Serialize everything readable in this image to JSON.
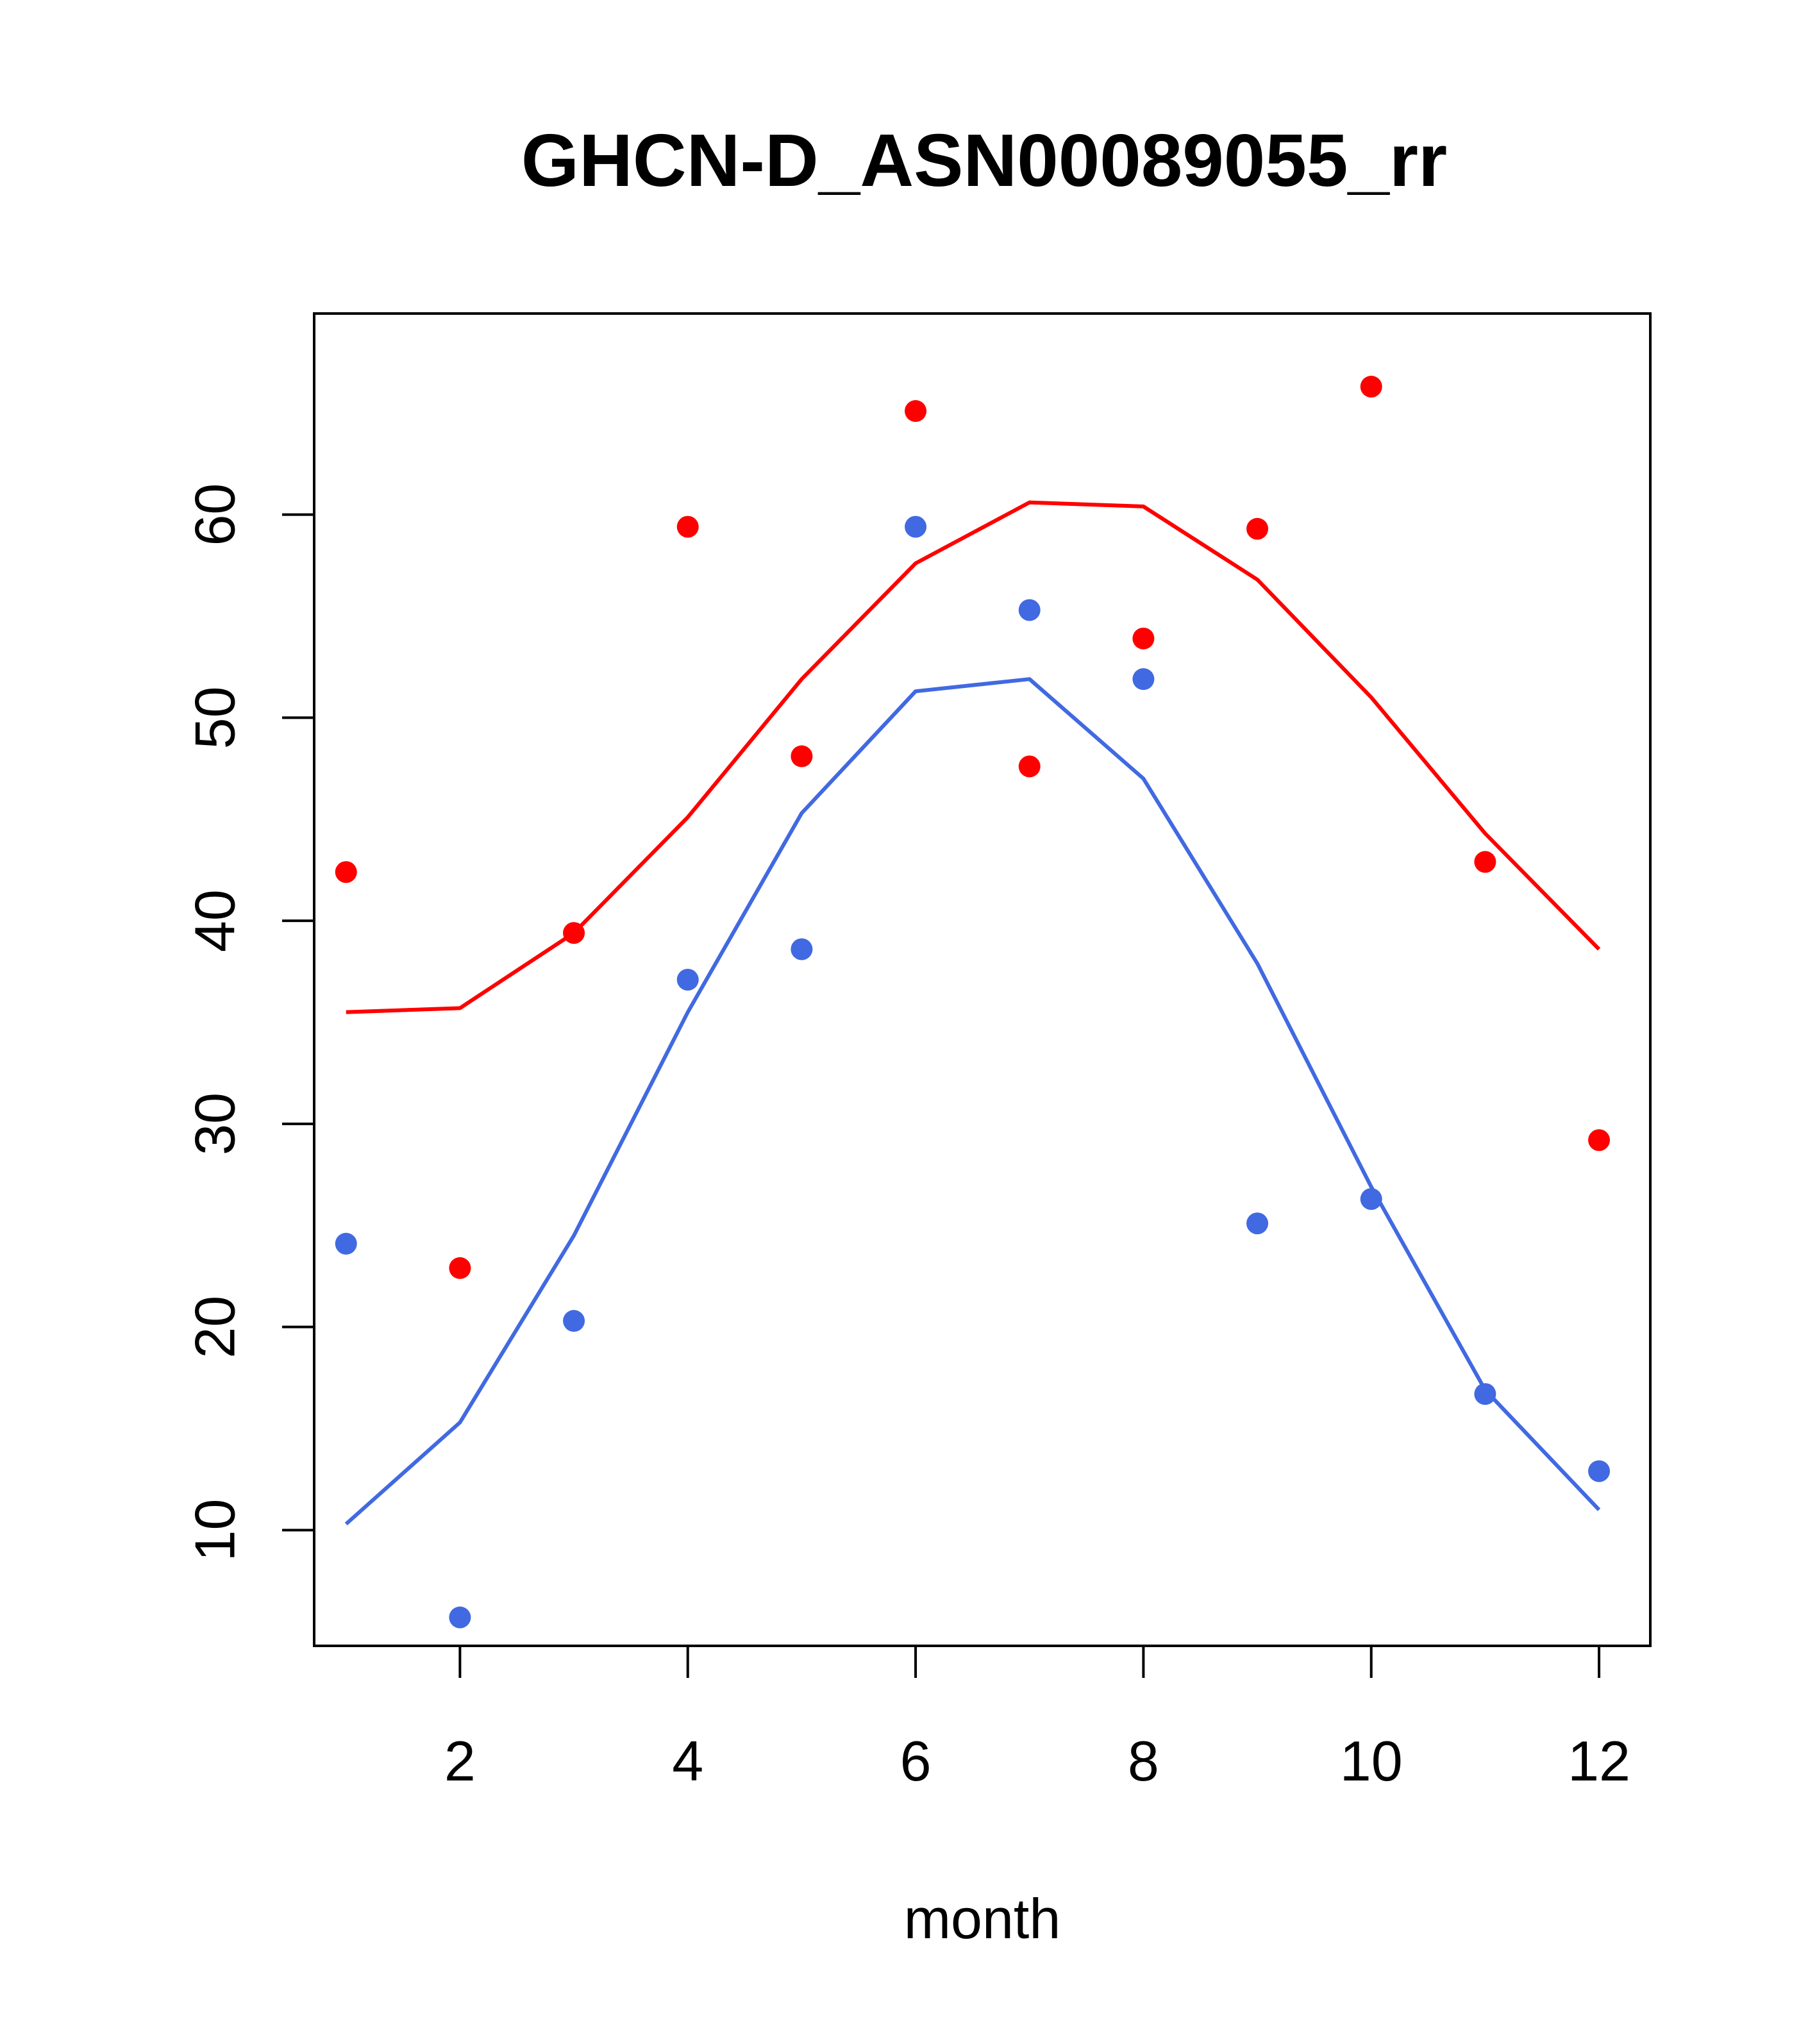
{
  "chart_data": {
    "type": "scatter",
    "title": "GHCN-D_ASN00089055_rr",
    "xlabel": "month",
    "ylabel": "",
    "xlim": [
      0.72,
      12.45
    ],
    "ylim": [
      4.3,
      69.9
    ],
    "xticks": [
      2,
      4,
      6,
      8,
      10,
      12
    ],
    "yticks": [
      10,
      20,
      30,
      40,
      50,
      60
    ],
    "grid": false,
    "legend": "none",
    "x": [
      1,
      2,
      3,
      4,
      5,
      6,
      7,
      8,
      9,
      10,
      11,
      12
    ],
    "series": [
      {
        "color": "#ff0000",
        "points": [
          42.4,
          22.9,
          39.4,
          59.4,
          48.1,
          65.1,
          47.6,
          53.9,
          59.3,
          66.3,
          42.9,
          29.2
        ],
        "line": [
          35.5,
          35.7,
          39.4,
          45.1,
          51.9,
          57.6,
          60.6,
          60.4,
          56.8,
          51.0,
          44.3,
          38.6
        ]
      },
      {
        "color": "#4169e1",
        "points": [
          24.1,
          5.7,
          20.3,
          37.1,
          38.6,
          59.4,
          55.3,
          51.9,
          25.1,
          26.3,
          16.7,
          12.9
        ],
        "line": [
          10.3,
          15.3,
          24.5,
          35.5,
          45.3,
          51.3,
          51.9,
          47.0,
          37.9,
          26.9,
          16.9,
          11.0
        ]
      }
    ]
  }
}
